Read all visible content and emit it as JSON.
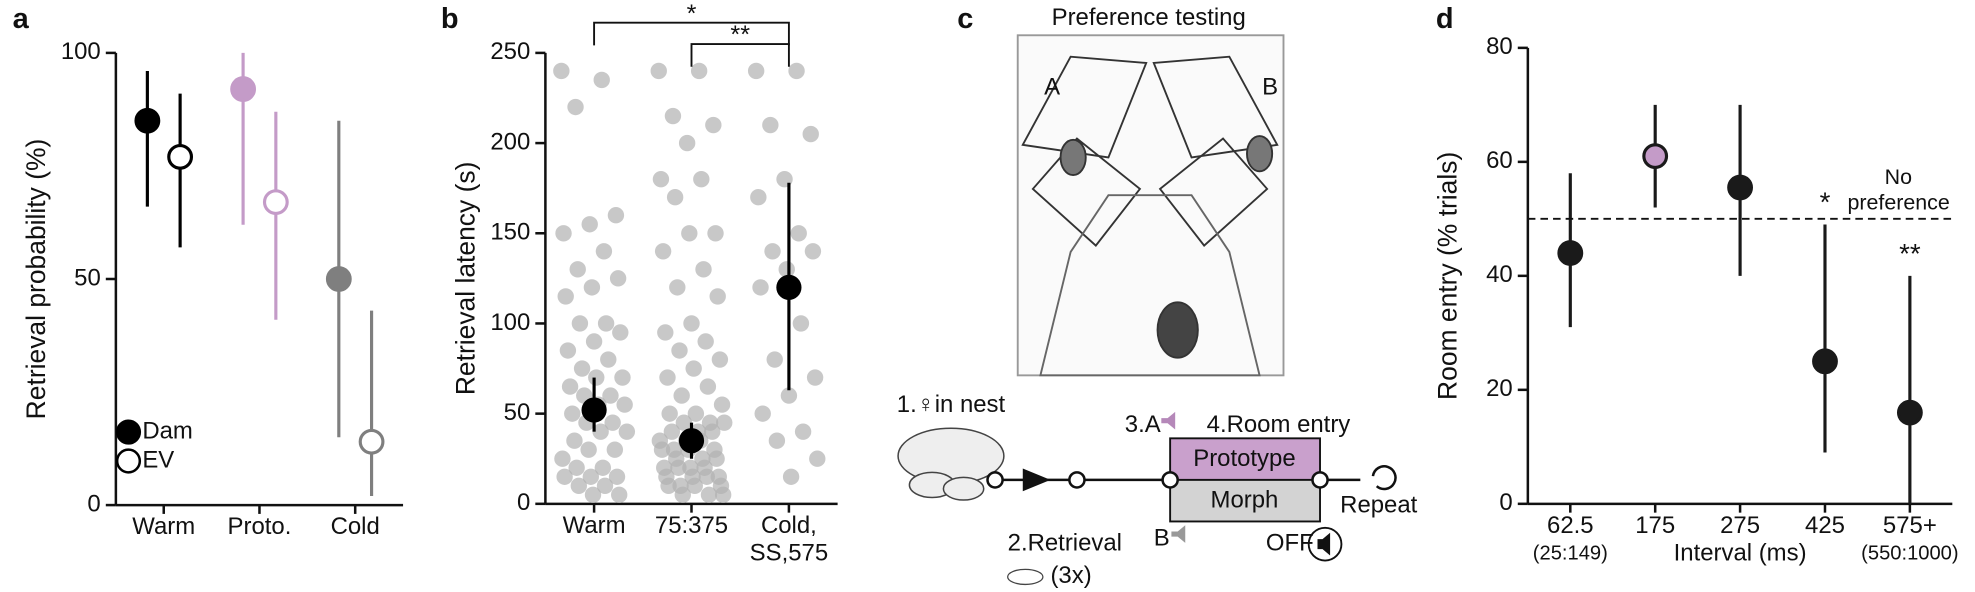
{
  "panel_labels": [
    "a",
    "b",
    "c",
    "d"
  ],
  "chart_data": [
    {
      "type": "dot_errorbar",
      "ylabel": "Retrieval probability (%)",
      "categories": [
        "Warm",
        "Proto.",
        "Cold"
      ],
      "ylim": [
        0,
        100
      ],
      "yticks": [
        0,
        50,
        100
      ],
      "legend": "lower left",
      "series": [
        {
          "name": "Dam",
          "marker": "filled",
          "colors": [
            "#000000",
            "#c49bc8",
            "#7f7f7f"
          ],
          "values": [
            85,
            92,
            50
          ],
          "low": [
            66,
            62,
            15
          ],
          "high": [
            96,
            100,
            85
          ]
        },
        {
          "name": "EV",
          "marker": "open",
          "colors": [
            "#000000",
            "#c49bc8",
            "#7f7f7f"
          ],
          "values": [
            77,
            67,
            14
          ],
          "low": [
            57,
            41,
            2
          ],
          "high": [
            91,
            87,
            43
          ]
        }
      ]
    },
    {
      "type": "strip",
      "ylabel": "Retrieval latency (s)",
      "categories": [
        "Warm",
        "75:375",
        [
          "Cold,",
          "SS,575"
        ]
      ],
      "ylim": [
        0,
        250
      ],
      "yticks": [
        0,
        50,
        100,
        150,
        200,
        250
      ],
      "point_color": "#b0b0b0",
      "mean_color": "#000000",
      "points": [
        [
          240,
          235,
          220,
          160,
          155,
          150,
          140,
          130,
          125,
          120,
          115,
          100,
          100,
          95,
          90,
          85,
          80,
          75,
          70,
          70,
          65,
          60,
          60,
          55,
          55,
          50,
          45,
          45,
          40,
          40,
          35,
          30,
          30,
          25,
          20,
          20,
          15,
          15,
          15,
          10,
          10,
          5,
          5
        ],
        [
          240,
          240,
          215,
          210,
          200,
          180,
          180,
          170,
          150,
          150,
          140,
          130,
          120,
          115,
          100,
          95,
          90,
          85,
          80,
          75,
          70,
          65,
          60,
          55,
          50,
          50,
          45,
          45,
          45,
          40,
          40,
          40,
          35,
          35,
          35,
          30,
          30,
          30,
          30,
          25,
          25,
          25,
          20,
          20,
          20,
          20,
          15,
          15,
          15,
          15,
          10,
          10,
          10,
          10,
          5,
          5,
          5
        ],
        [
          240,
          240,
          210,
          205,
          180,
          170,
          150,
          140,
          140,
          130,
          120,
          100,
          80,
          70,
          60,
          50,
          40,
          35,
          25,
          15
        ]
      ],
      "values": [
        52,
        35,
        120
      ],
      "low": [
        40,
        25,
        63
      ],
      "high": [
        70,
        45,
        178
      ],
      "significance": [
        {
          "text": "*",
          "from": 0,
          "to": 2
        },
        {
          "text": "**",
          "from": 1,
          "to": 2
        }
      ]
    },
    {
      "type": "dot_errorbar",
      "ylabel": "Room entry (% trials)",
      "xlabel": "Interval (ms)",
      "categories": [
        "62.5",
        "175",
        "275",
        "425",
        "575+"
      ],
      "category_notes": [
        "(25:149)",
        null,
        null,
        null,
        "(550:1000)"
      ],
      "ylim": [
        0,
        80
      ],
      "yticks": [
        0,
        20,
        40,
        60,
        80
      ],
      "reference_line": {
        "value": 50,
        "label": [
          "No",
          "preference"
        ]
      },
      "series": [
        {
          "marker": "filled",
          "colors": [
            "#1a1a1a",
            "#c49bc8",
            "#1a1a1a",
            "#1a1a1a",
            "#1a1a1a"
          ],
          "line_color": "#1a1a1a",
          "values": [
            44,
            61,
            55.5,
            25,
            16
          ],
          "low": [
            31,
            52,
            40,
            9,
            0
          ],
          "high": [
            58,
            70,
            70,
            49,
            40
          ]
        }
      ],
      "annotations": [
        {
          "text": "*",
          "category": 3
        },
        {
          "text": "**",
          "category": 4
        }
      ]
    }
  ],
  "diagram": {
    "title": "Preference testing",
    "room_a": "A",
    "room_b": "B",
    "steps": {
      "nest": "1.♀in nest",
      "retrieval": "2.Retrieval",
      "repeats": "(3x)",
      "stim_a": "3.A",
      "entry": "4.Room entry",
      "prototype": "Prototype",
      "morph": "Morph",
      "stim_b": "B",
      "off": "OFF",
      "repeat": "Repeat"
    }
  }
}
